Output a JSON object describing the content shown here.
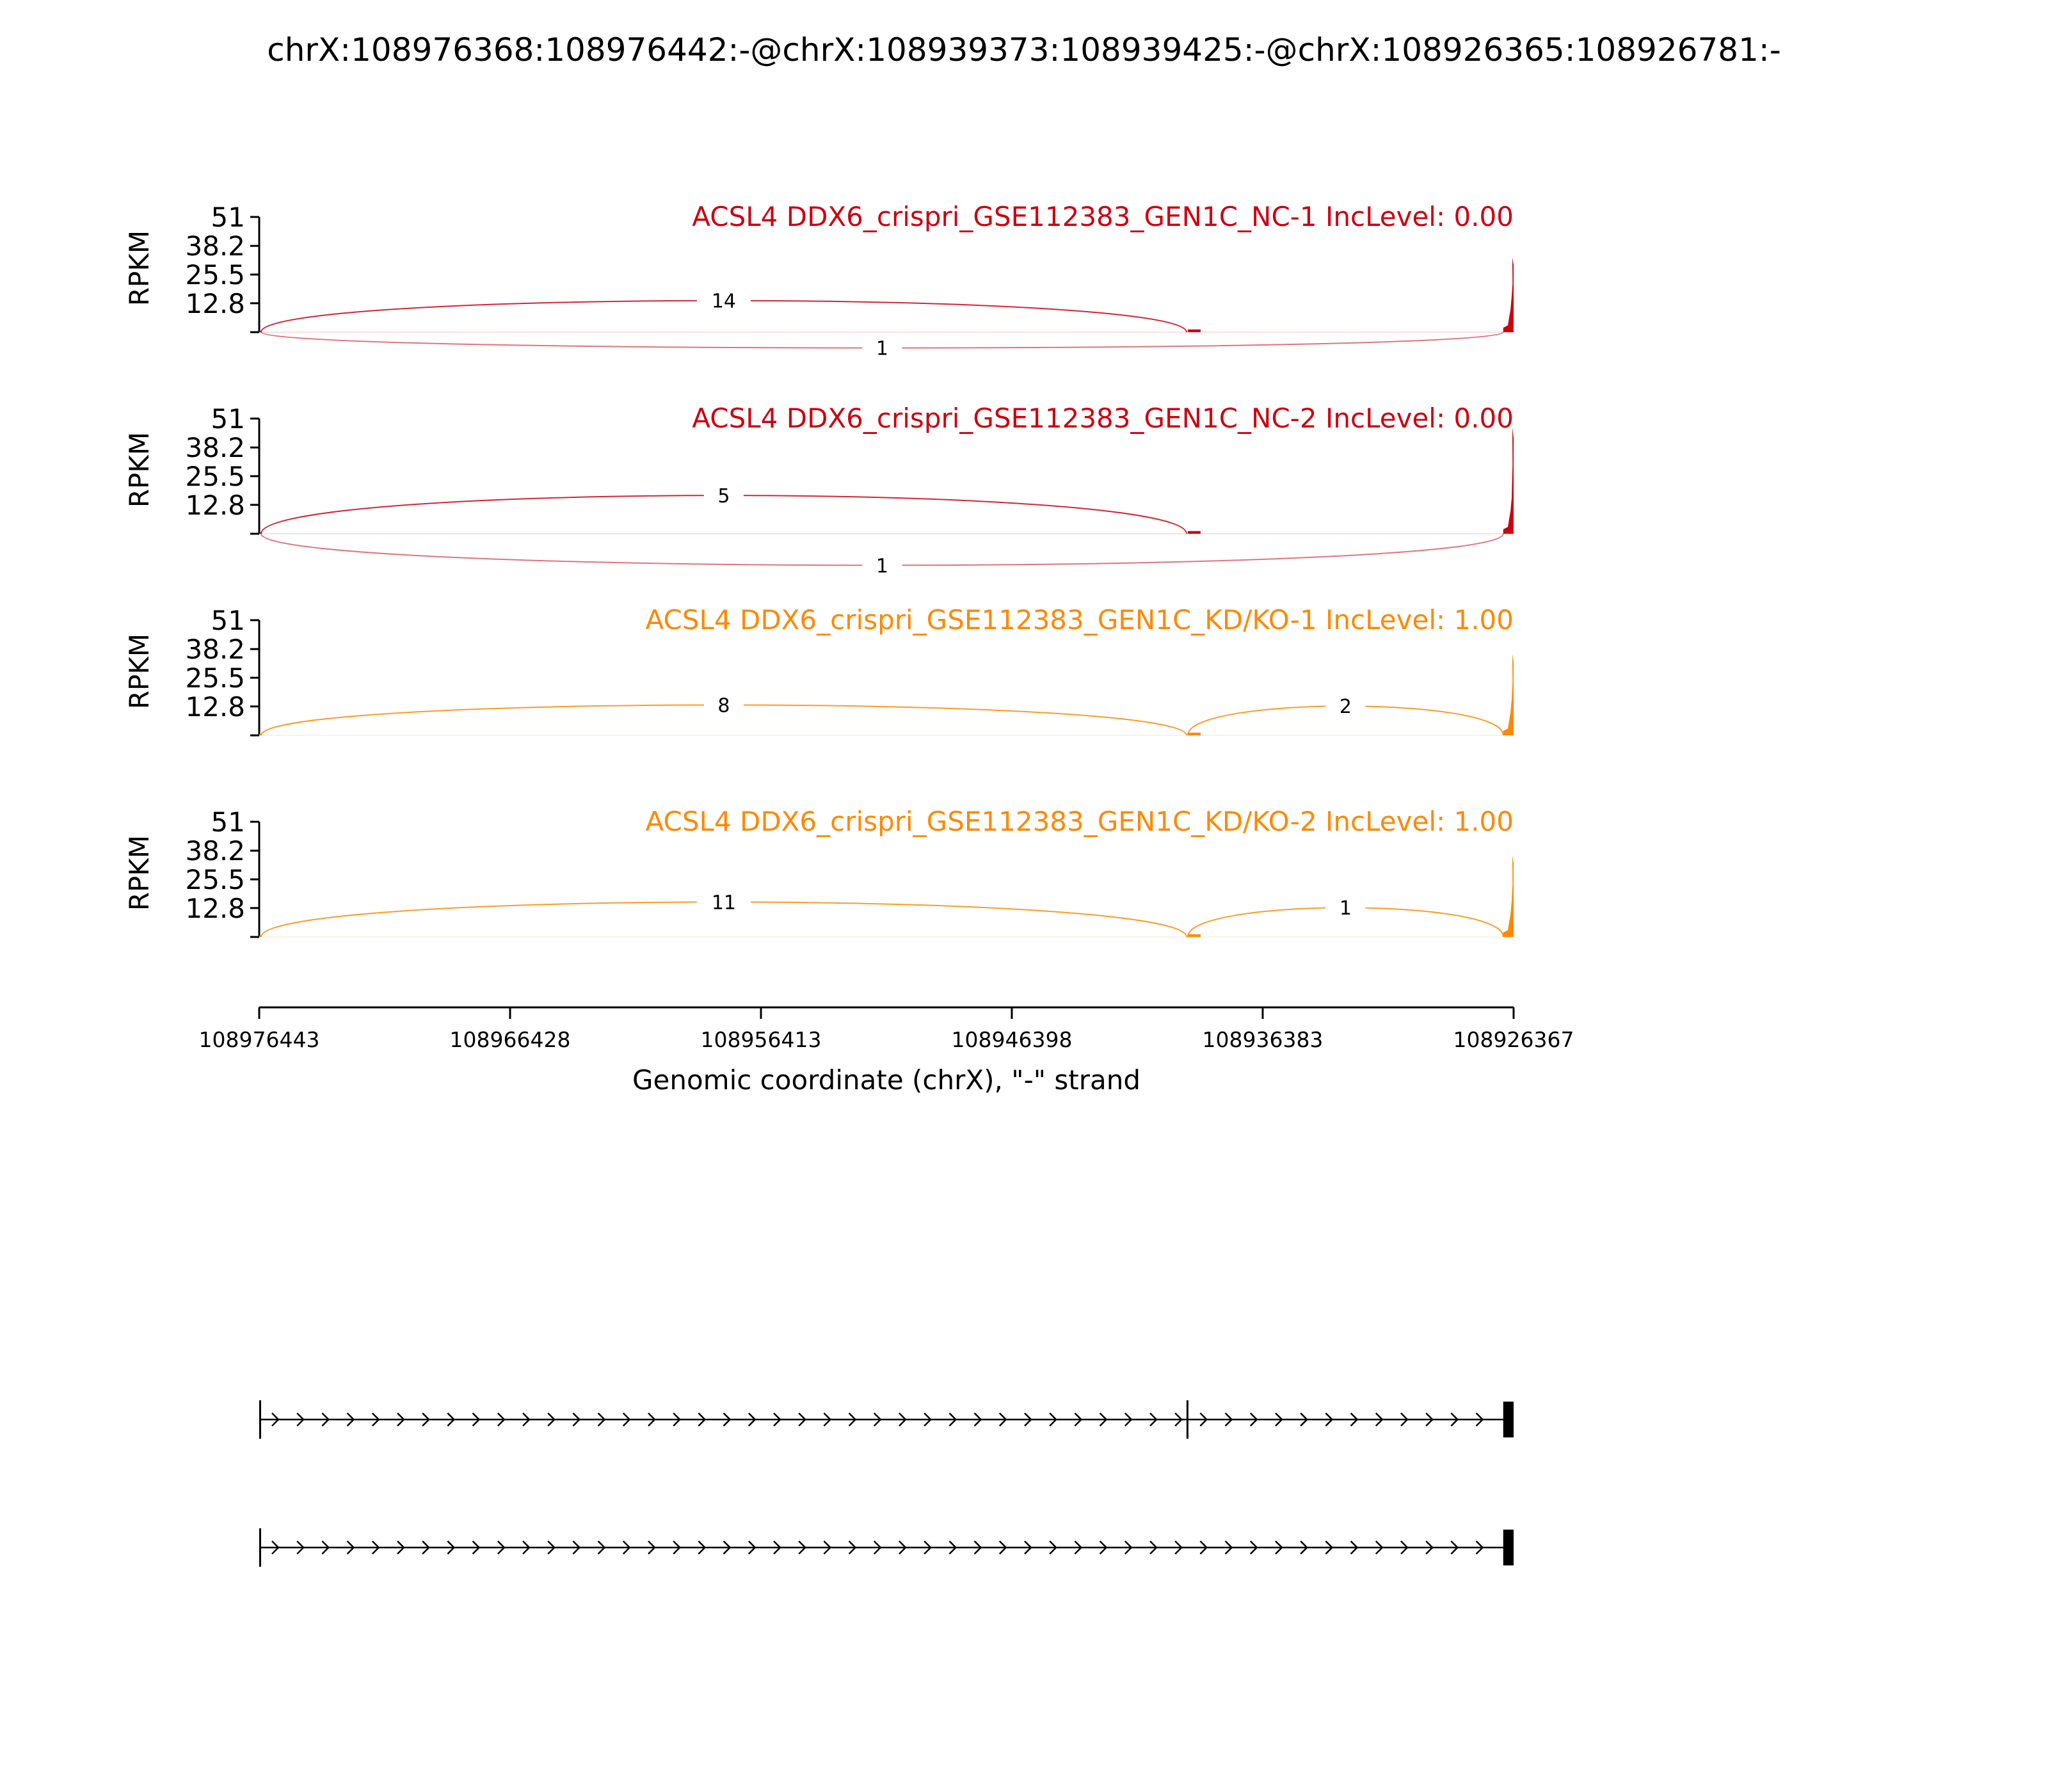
{
  "chart_data": {
    "type": "sashimi",
    "title": "chrX:108976368:108976442:-@chrX:108939373:108939425:-@chrX:108926365:108926781:-",
    "xlabel": "Genomic coordinate (chrX), \"-\" strand",
    "ylabel": "RPKM",
    "x_range": [
      108976443,
      108926367
    ],
    "x_ticks": [
      "108976443",
      "108966428",
      "108956413",
      "108946398",
      "108936383",
      "108926367"
    ],
    "y_range": [
      0,
      51
    ],
    "y_ticks": [
      "51",
      "38.2",
      "25.5",
      "12.8"
    ],
    "exons": [
      {
        "start": 108976443,
        "end": 108976368
      },
      {
        "start": 108939425,
        "end": 108939373
      },
      {
        "start": 108926781,
        "end": 108926367
      }
    ],
    "panels": [
      {
        "title": "ACSL4 DDX6_crispri_GSE112383_GEN1C_NC-1 IncLevel: 0.00",
        "color": "#cc0011",
        "peak": 33,
        "junctions": [
          {
            "from": 108976368,
            "to": 108939425,
            "count": "14",
            "side": "above",
            "height": 14
          },
          {
            "from": 108976368,
            "to": 108926781,
            "count": "1",
            "side": "below",
            "height": 7
          }
        ]
      },
      {
        "title": "ACSL4 DDX6_crispri_GSE112383_GEN1C_NC-2 IncLevel: 0.00",
        "color": "#cc0011",
        "peak": 47,
        "junctions": [
          {
            "from": 108976368,
            "to": 108939425,
            "count": "5",
            "side": "above",
            "height": 17
          },
          {
            "from": 108976368,
            "to": 108926781,
            "count": "1",
            "side": "below",
            "height": 14
          }
        ]
      },
      {
        "title": "ACSL4 DDX6_crispri_GSE112383_GEN1C_KD/KO-1 IncLevel: 1.00",
        "color": "#ff8800",
        "peak": 36,
        "junctions": [
          {
            "from": 108976368,
            "to": 108939425,
            "count": "8",
            "side": "above",
            "height": 13.5
          },
          {
            "from": 108939373,
            "to": 108926781,
            "count": "2",
            "side": "above",
            "height": 13
          }
        ]
      },
      {
        "title": "ACSL4 DDX6_crispri_GSE112383_GEN1C_KD/KO-2 IncLevel: 1.00",
        "color": "#ff8800",
        "peak": 36,
        "junctions": [
          {
            "from": 108976368,
            "to": 108939425,
            "count": "11",
            "side": "above",
            "height": 15.5
          },
          {
            "from": 108939373,
            "to": 108926781,
            "count": "1",
            "side": "above",
            "height": 13
          }
        ]
      }
    ],
    "isoforms": [
      {
        "exons": [
          {
            "start": 108976443,
            "end": 108976368
          },
          {
            "start": 108939425,
            "end": 108939373
          },
          {
            "start": 108926781,
            "end": 108926367
          }
        ]
      },
      {
        "exons": [
          {
            "start": 108976443,
            "end": 108976368
          },
          {
            "start": 108926781,
            "end": 108926367
          }
        ]
      }
    ]
  }
}
